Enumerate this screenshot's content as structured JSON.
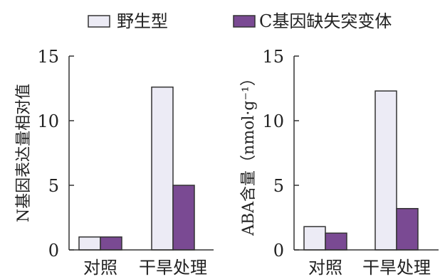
{
  "legend": {
    "position": "top",
    "items": [
      {
        "label": "野生型",
        "swatch": "wildtype"
      },
      {
        "label": "C基因缺失突变体",
        "swatch": "mutant"
      }
    ]
  },
  "colors": {
    "wildtype": "#ecebf5",
    "mutant": "#7a4a93",
    "edge": "#333333"
  },
  "chart_data": [
    {
      "type": "bar",
      "categories": [
        "对照",
        "干旱处理"
      ],
      "series": [
        {
          "name": "野生型",
          "values": [
            1,
            12.6
          ]
        },
        {
          "name": "C基因缺失突变体",
          "values": [
            1,
            5
          ]
        }
      ],
      "ylabel": "N基因表达量相对值",
      "ylim": [
        0,
        15
      ],
      "yticks": [
        "0",
        "5",
        "10",
        "15"
      ],
      "grid": false
    },
    {
      "type": "bar",
      "categories": [
        "对照",
        "干旱处理"
      ],
      "series": [
        {
          "name": "野生型",
          "values": [
            1.8,
            12.3
          ]
        },
        {
          "name": "C基因缺失突变体",
          "values": [
            1.3,
            3.2
          ]
        }
      ],
      "ylabel": "ABA含量（nmol·g⁻¹）",
      "ylim": [
        0,
        15
      ],
      "yticks": [
        "0",
        "5",
        "10",
        "15"
      ],
      "grid": false
    }
  ]
}
